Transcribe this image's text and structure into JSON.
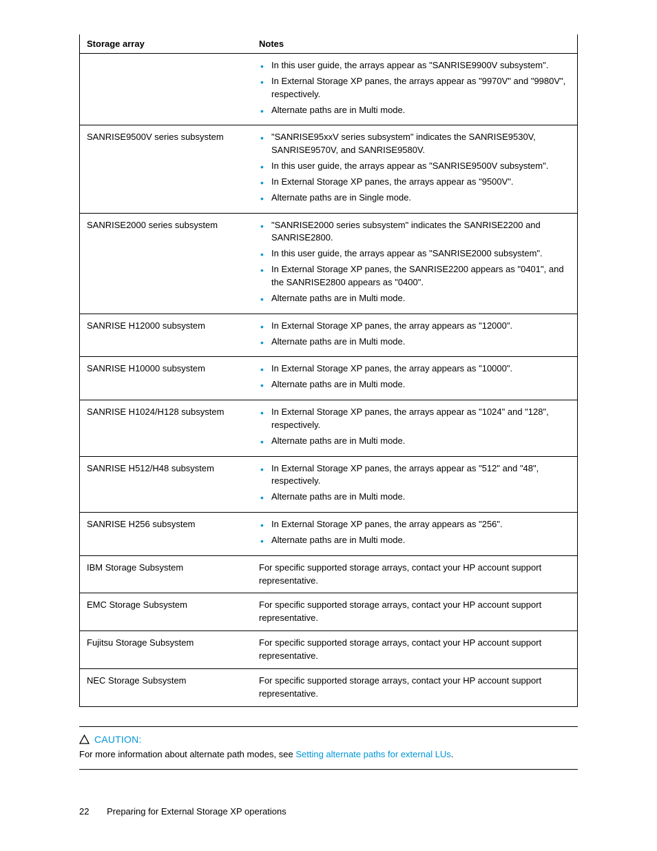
{
  "table": {
    "header": {
      "col1": "Storage array",
      "col2": "Notes"
    },
    "rows": [
      {
        "array": "",
        "notes_bullets": [
          "In this user guide, the arrays appear as \"SANRISE9900V subsystem\".",
          "In External Storage XP panes, the arrays appear as \"9970V\" and \"9980V\", respectively.",
          "Alternate paths are in Multi mode."
        ]
      },
      {
        "array": "SANRISE9500V series subsystem",
        "notes_bullets": [
          "\"SANRISE95xxV series subsystem\" indicates the SANRISE9530V, SANRISE9570V, and SANRISE9580V.",
          "In this user guide, the arrays appear as \"SANRISE9500V subsystem\".",
          "In External Storage XP panes, the arrays appear as \"9500V\".",
          "Alternate paths are in Single mode."
        ]
      },
      {
        "array": "SANRISE2000 series subsystem",
        "notes_bullets": [
          "\"SANRISE2000 series subsystem\" indicates the SANRISE2200 and SANRISE2800.",
          "In this user guide, the arrays appear as \"SANRISE2000 subsystem\".",
          "In External Storage XP panes, the SANRISE2200 appears as \"0401\", and the SANRISE2800 appears as \"0400\".",
          "Alternate paths are in Multi mode."
        ]
      },
      {
        "array": "SANRISE H12000 subsystem",
        "notes_bullets": [
          "In External Storage XP panes, the array appears as \"12000\".",
          "Alternate paths are in Multi mode."
        ]
      },
      {
        "array": "SANRISE H10000 subsystem",
        "notes_bullets": [
          "In External Storage XP panes, the array appears as \"10000\".",
          "Alternate paths are in Multi mode."
        ]
      },
      {
        "array": "SANRISE H1024/H128 subsystem",
        "notes_bullets": [
          "In External Storage XP panes, the arrays appear as \"1024\" and \"128\", respectively.",
          "Alternate paths are in Multi mode."
        ]
      },
      {
        "array": "SANRISE H512/H48 subsystem",
        "notes_bullets": [
          "In External Storage XP panes, the arrays appear as \"512\" and \"48\", respectively.",
          "Alternate paths are in Multi mode."
        ]
      },
      {
        "array": "SANRISE H256 subsystem",
        "notes_bullets": [
          "In External Storage XP panes, the array appears as \"256\".",
          "Alternate paths are in Multi mode."
        ]
      },
      {
        "array": "IBM Storage Subsystem",
        "notes_text": "For specific supported storage arrays, contact your HP account support representative."
      },
      {
        "array": "EMC Storage Subsystem",
        "notes_text": "For specific supported storage arrays, contact your HP account support representative."
      },
      {
        "array": "Fujitsu Storage Subsystem",
        "notes_text": "For specific supported storage arrays, contact your HP account support representative."
      },
      {
        "array": "NEC Storage Subsystem",
        "notes_text": "For specific supported storage arrays, contact your HP account support representative."
      }
    ]
  },
  "caution": {
    "label": "CAUTION:",
    "text_before": "For more information about alternate path modes, see ",
    "link_text": "Setting alternate paths for external LUs",
    "text_after": "."
  },
  "footer": {
    "page_number": "22",
    "section_title": "Preparing for External Storage XP operations"
  },
  "colors": {
    "accent": "#0096d6",
    "text": "#000000",
    "background": "#ffffff"
  }
}
